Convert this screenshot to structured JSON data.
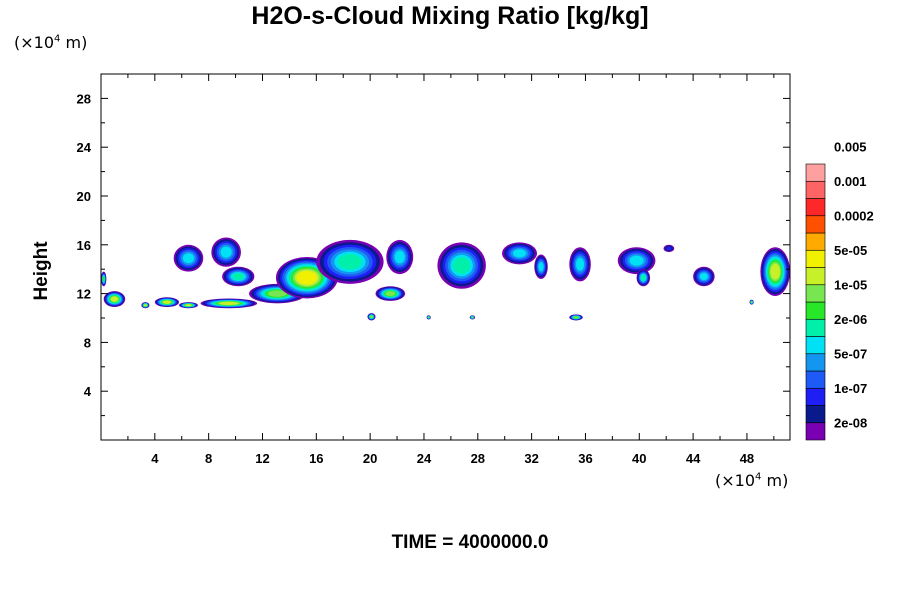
{
  "chart_data": {
    "type": "heatmap",
    "title": "H2O-s-Cloud Mixing Ratio [kg/kg]",
    "ylabel": "Height",
    "y_unit": {
      "prefix": "(×10",
      "exp": "4",
      "suffix": " m)"
    },
    "x_unit": {
      "prefix": "(×10",
      "exp": "4",
      "suffix": " m)"
    },
    "x_ticks": [
      4,
      8,
      12,
      16,
      20,
      24,
      28,
      32,
      36,
      40,
      44,
      48
    ],
    "y_ticks": [
      4,
      8,
      12,
      16,
      20,
      24,
      28
    ],
    "xlim": [
      0,
      51.2
    ],
    "ylim": [
      0,
      30
    ],
    "grid": false,
    "footer": "TIME = 4000000.0",
    "colorbar": {
      "colors": [
        "#7a00b4",
        "#0a1a8c",
        "#1e1ef5",
        "#1e5af5",
        "#1496f0",
        "#00e1f5",
        "#00f0aa",
        "#28e628",
        "#78e650",
        "#c8f028",
        "#f0f000",
        "#ffaa00",
        "#ff5000",
        "#ff2828",
        "#ff6464",
        "#ffa0a0"
      ],
      "labels": [
        "2e-08",
        "1e-07",
        "5e-07",
        "2e-06",
        "1e-05",
        "5e-05",
        "0.0002",
        "0.001",
        "0.005"
      ]
    },
    "cloud_features": [
      {
        "x": [
          0.0,
          0.4
        ],
        "y": [
          12.6,
          13.8
        ],
        "max_level": 7
      },
      {
        "x": [
          0.2,
          1.8
        ],
        "y": [
          10.9,
          12.2
        ],
        "max_level": 9
      },
      {
        "x": [
          3.0,
          3.6
        ],
        "y": [
          10.8,
          11.3
        ],
        "max_level": 9
      },
      {
        "x": [
          4.0,
          5.8
        ],
        "y": [
          10.9,
          11.7
        ],
        "max_level": 9
      },
      {
        "x": [
          5.4,
          7.6
        ],
        "y": [
          13.8,
          16.0
        ],
        "max_level": 5
      },
      {
        "x": [
          5.8,
          7.2
        ],
        "y": [
          10.8,
          11.3
        ],
        "max_level": 9
      },
      {
        "x": [
          7.4,
          11.6
        ],
        "y": [
          10.8,
          11.6
        ],
        "max_level": 9
      },
      {
        "x": [
          8.2,
          10.4
        ],
        "y": [
          14.2,
          16.6
        ],
        "max_level": 5
      },
      {
        "x": [
          9.0,
          11.4
        ],
        "y": [
          12.6,
          14.2
        ],
        "max_level": 6
      },
      {
        "x": [
          11.0,
          15.2
        ],
        "y": [
          11.2,
          12.8
        ],
        "max_level": 8
      },
      {
        "x": [
          13.0,
          17.6
        ],
        "y": [
          11.6,
          15.0
        ],
        "max_level": 10
      },
      {
        "x": [
          16.0,
          21.0
        ],
        "y": [
          12.8,
          16.4
        ],
        "max_level": 6
      },
      {
        "x": [
          21.2,
          23.2
        ],
        "y": [
          13.6,
          16.4
        ],
        "max_level": 5
      },
      {
        "x": [
          19.8,
          20.4
        ],
        "y": [
          9.8,
          10.4
        ],
        "max_level": 8
      },
      {
        "x": [
          20.4,
          22.6
        ],
        "y": [
          11.4,
          12.6
        ],
        "max_level": 8
      },
      {
        "x": [
          24.2,
          24.5
        ],
        "y": [
          9.9,
          10.2
        ],
        "max_level": 8
      },
      {
        "x": [
          25.0,
          28.6
        ],
        "y": [
          12.4,
          16.2
        ],
        "max_level": 6
      },
      {
        "x": [
          27.4,
          27.8
        ],
        "y": [
          9.9,
          10.2
        ],
        "max_level": 8
      },
      {
        "x": [
          29.8,
          32.4
        ],
        "y": [
          14.4,
          16.2
        ],
        "max_level": 5
      },
      {
        "x": [
          32.2,
          33.2
        ],
        "y": [
          13.2,
          15.2
        ],
        "max_level": 5
      },
      {
        "x": [
          34.8,
          35.8
        ],
        "y": [
          9.8,
          10.3
        ],
        "max_level": 8
      },
      {
        "x": [
          34.8,
          36.4
        ],
        "y": [
          13.0,
          15.8
        ],
        "max_level": 5
      },
      {
        "x": [
          38.4,
          41.2
        ],
        "y": [
          13.6,
          15.8
        ],
        "max_level": 5
      },
      {
        "x": [
          39.8,
          40.8
        ],
        "y": [
          12.6,
          14.0
        ],
        "max_level": 6
      },
      {
        "x": [
          41.8,
          42.6
        ],
        "y": [
          15.4,
          16.0
        ],
        "max_level": 2
      },
      {
        "x": [
          44.0,
          45.6
        ],
        "y": [
          12.6,
          14.2
        ],
        "max_level": 5
      },
      {
        "x": [
          48.2,
          48.5
        ],
        "y": [
          11.1,
          11.5
        ],
        "max_level": 8
      },
      {
        "x": [
          49.0,
          51.2
        ],
        "y": [
          11.8,
          15.8
        ],
        "max_level": 9
      }
    ]
  }
}
